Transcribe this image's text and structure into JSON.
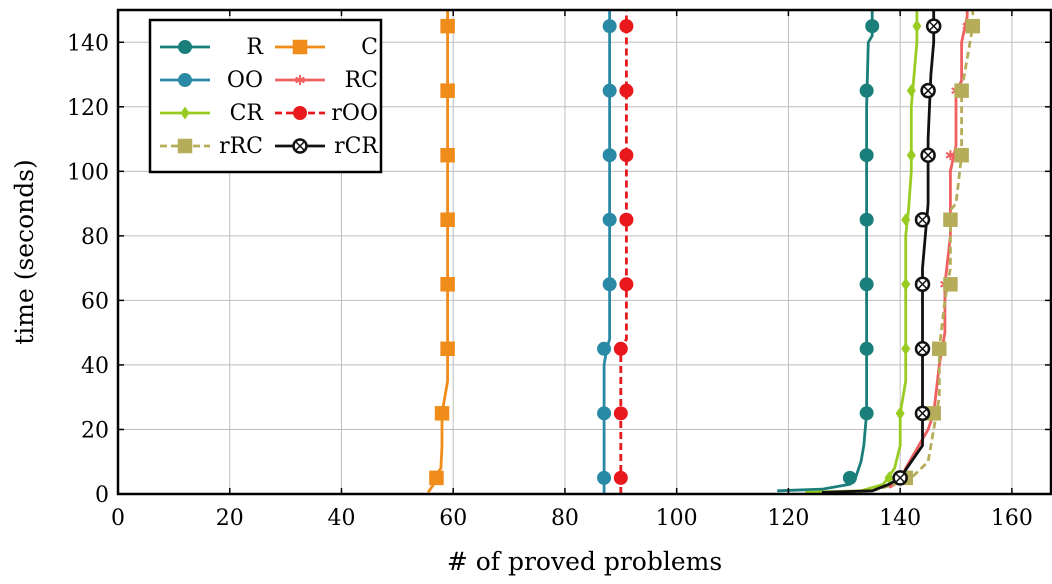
{
  "chart_data": {
    "type": "line",
    "xlabel": "# of proved problems",
    "ylabel": "time (seconds)",
    "xlim": [
      0,
      167
    ],
    "ylim": [
      0,
      150
    ],
    "xticks": [
      0,
      20,
      40,
      60,
      80,
      100,
      120,
      140,
      160
    ],
    "yticks": [
      0,
      20,
      40,
      60,
      80,
      100,
      120,
      140
    ],
    "grid": true,
    "legend": {
      "placement": "top-left",
      "columns": 2
    },
    "series": [
      {
        "name": "R",
        "color": "#1a7f7a",
        "dash": "solid",
        "marker": "circle",
        "points": [
          [
            118,
            1
          ],
          [
            126,
            1.5
          ],
          [
            131,
            3
          ],
          [
            132,
            5
          ],
          [
            133,
            10
          ],
          [
            133.5,
            15
          ],
          [
            134,
            25
          ],
          [
            134,
            40
          ],
          [
            134,
            60
          ],
          [
            134,
            80
          ],
          [
            134,
            100
          ],
          [
            134,
            120
          ],
          [
            134.3,
            140
          ],
          [
            135,
            142
          ],
          [
            135,
            150
          ]
        ],
        "markers": [
          [
            131,
            5
          ],
          [
            134,
            25
          ],
          [
            134,
            45
          ],
          [
            134,
            65
          ],
          [
            134,
            85
          ],
          [
            134,
            105
          ],
          [
            134,
            125
          ],
          [
            135,
            145
          ]
        ]
      },
      {
        "name": "C",
        "color": "#f08c1a",
        "dash": "solid",
        "marker": "square",
        "points": [
          [
            55.5,
            0.5
          ],
          [
            56.5,
            3
          ],
          [
            57,
            6
          ],
          [
            57.8,
            8
          ],
          [
            58,
            15
          ],
          [
            58,
            25
          ],
          [
            58.5,
            30
          ],
          [
            59,
            35
          ],
          [
            59,
            50
          ],
          [
            59,
            80
          ],
          [
            59,
            110
          ],
          [
            59,
            150
          ]
        ],
        "markers": [
          [
            57,
            5
          ],
          [
            58,
            25
          ],
          [
            59,
            45
          ],
          [
            59,
            65
          ],
          [
            59,
            85
          ],
          [
            59,
            105
          ],
          [
            59,
            125
          ],
          [
            59,
            145
          ]
        ]
      },
      {
        "name": "OO",
        "color": "#2a8aa6",
        "dash": "solid",
        "marker": "circle",
        "points": [
          [
            87,
            0
          ],
          [
            87,
            40
          ],
          [
            87.5,
            45
          ],
          [
            88,
            48
          ],
          [
            88,
            80
          ],
          [
            88,
            110
          ],
          [
            88,
            150
          ]
        ],
        "markers": [
          [
            87,
            5
          ],
          [
            87,
            25
          ],
          [
            87,
            45
          ],
          [
            88,
            65
          ],
          [
            88,
            85
          ],
          [
            88,
            105
          ],
          [
            88,
            125
          ],
          [
            88,
            145
          ]
        ]
      },
      {
        "name": "RC",
        "color": "#f06060",
        "dash": "solid",
        "marker": "star",
        "points": [
          [
            138,
            2
          ],
          [
            140,
            4
          ],
          [
            141,
            8
          ],
          [
            142,
            11
          ],
          [
            143,
            14
          ],
          [
            145,
            20
          ],
          [
            146,
            25
          ],
          [
            147,
            40
          ],
          [
            148,
            50
          ],
          [
            148,
            65
          ],
          [
            149,
            80
          ],
          [
            149,
            100
          ],
          [
            150,
            108
          ],
          [
            150,
            125
          ],
          [
            151,
            128
          ],
          [
            151,
            140
          ],
          [
            152,
            148
          ],
          [
            152,
            150
          ]
        ],
        "markers": [
          [
            141,
            5
          ],
          [
            145,
            25
          ],
          [
            147,
            45
          ],
          [
            148,
            65
          ],
          [
            149,
            85
          ],
          [
            149,
            105
          ],
          [
            150,
            125
          ],
          [
            152,
            145
          ]
        ]
      },
      {
        "name": "CR",
        "color": "#99cc22",
        "dash": "solid",
        "marker": "diamond",
        "points": [
          [
            123,
            0.5
          ],
          [
            133,
            1
          ],
          [
            137,
            3
          ],
          [
            139,
            8
          ],
          [
            140,
            15
          ],
          [
            140,
            25
          ],
          [
            141,
            35
          ],
          [
            141,
            50
          ],
          [
            141,
            80
          ],
          [
            141.5,
            88
          ],
          [
            142,
            100
          ],
          [
            142,
            120
          ],
          [
            142.5,
            130
          ],
          [
            143,
            140
          ],
          [
            143,
            150
          ]
        ],
        "markers": [
          [
            138,
            5
          ],
          [
            140,
            25
          ],
          [
            141,
            45
          ],
          [
            141,
            65
          ],
          [
            141,
            85
          ],
          [
            142,
            105
          ],
          [
            142,
            125
          ],
          [
            143,
            145
          ]
        ]
      },
      {
        "name": "rOO",
        "color": "#e8181c",
        "dash": "dashed",
        "marker": "circle",
        "points": [
          [
            90,
            0
          ],
          [
            90,
            45
          ],
          [
            91,
            48
          ],
          [
            91,
            80
          ],
          [
            91,
            110
          ],
          [
            91,
            150
          ]
        ],
        "markers": [
          [
            90,
            5
          ],
          [
            90,
            25
          ],
          [
            90,
            45
          ],
          [
            91,
            65
          ],
          [
            91,
            85
          ],
          [
            91,
            105
          ],
          [
            91,
            125
          ],
          [
            91,
            145
          ]
        ]
      },
      {
        "name": "rRC",
        "color": "#b5ad5a",
        "dash": "dashed",
        "marker": "square",
        "points": [
          [
            127,
            0.5
          ],
          [
            135,
            1
          ],
          [
            139,
            3
          ],
          [
            142,
            5
          ],
          [
            145,
            10
          ],
          [
            146,
            20
          ],
          [
            147,
            30
          ],
          [
            147,
            45
          ],
          [
            148,
            60
          ],
          [
            149,
            70
          ],
          [
            149,
            88
          ],
          [
            150,
            90
          ],
          [
            151,
            105
          ],
          [
            151,
            125
          ],
          [
            152,
            135
          ],
          [
            153,
            145
          ],
          [
            153,
            150
          ]
        ],
        "markers": [
          [
            141,
            5
          ],
          [
            146,
            25
          ],
          [
            147,
            45
          ],
          [
            149,
            65
          ],
          [
            149,
            85
          ],
          [
            151,
            105
          ],
          [
            151,
            125
          ],
          [
            153,
            145
          ]
        ]
      },
      {
        "name": "rCR",
        "color": "#111111",
        "dash": "solid",
        "marker": "circled-cross",
        "points": [
          [
            126,
            0.5
          ],
          [
            135,
            1
          ],
          [
            138,
            3
          ],
          [
            140,
            5
          ],
          [
            142,
            10
          ],
          [
            144,
            15
          ],
          [
            144,
            30
          ],
          [
            144,
            50
          ],
          [
            144,
            70
          ],
          [
            144.5,
            80
          ],
          [
            145,
            90
          ],
          [
            145,
            110
          ],
          [
            145.5,
            130
          ],
          [
            146,
            140
          ],
          [
            146,
            150
          ]
        ],
        "markers": [
          [
            140,
            5
          ],
          [
            144,
            25
          ],
          [
            144,
            45
          ],
          [
            144,
            65
          ],
          [
            144,
            85
          ],
          [
            145,
            105
          ],
          [
            145,
            125
          ],
          [
            146,
            145
          ]
        ]
      }
    ]
  }
}
